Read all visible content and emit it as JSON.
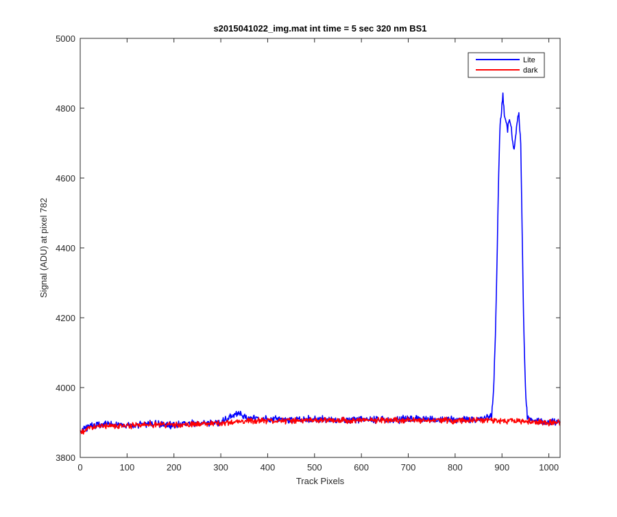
{
  "chart_data": {
    "type": "line",
    "title": "s2015041022_img.mat int time = 5 sec  320 nm BS1",
    "xlabel": "Track Pixels",
    "ylabel": "Signal (ADU) at pixel 782",
    "xlim": [
      0,
      1024
    ],
    "ylim": [
      3800,
      5000
    ],
    "xticks": [
      0,
      100,
      200,
      300,
      400,
      500,
      600,
      700,
      800,
      900,
      1000
    ],
    "yticks": [
      3800,
      4000,
      4200,
      4400,
      4600,
      4800,
      5000
    ],
    "grid": false,
    "legend_position": "top-right",
    "series": [
      {
        "name": "Lite",
        "color": "#0000ff",
        "x": [
          0,
          20,
          50,
          100,
          150,
          200,
          250,
          300,
          338,
          350,
          400,
          450,
          500,
          550,
          600,
          650,
          700,
          750,
          800,
          850,
          878,
          882,
          886,
          890,
          893,
          896,
          899,
          902,
          905,
          908,
          912,
          916,
          920,
          925,
          928,
          932,
          936,
          940,
          943,
          946,
          950,
          954,
          958,
          962,
          966,
          1000,
          1024
        ],
        "y": [
          3875,
          3890,
          3895,
          3890,
          3897,
          3893,
          3897,
          3900,
          3930,
          3915,
          3910,
          3907,
          3910,
          3905,
          3910,
          3907,
          3910,
          3910,
          3910,
          3908,
          3920,
          3990,
          4150,
          4400,
          4620,
          4760,
          4790,
          4840,
          4780,
          4760,
          4740,
          4770,
          4740,
          4680,
          4700,
          4760,
          4780,
          4700,
          4450,
          4200,
          4000,
          3920,
          3910,
          3905,
          3905,
          3900,
          3900
        ]
      },
      {
        "name": "dark",
        "color": "#ff0000",
        "x": [
          0,
          20,
          50,
          100,
          150,
          200,
          250,
          300,
          350,
          400,
          450,
          500,
          550,
          600,
          650,
          700,
          750,
          800,
          850,
          900,
          950,
          1000,
          1024
        ],
        "y": [
          3870,
          3885,
          3890,
          3890,
          3895,
          3893,
          3895,
          3898,
          3905,
          3905,
          3905,
          3908,
          3905,
          3907,
          3905,
          3907,
          3907,
          3905,
          3908,
          3905,
          3905,
          3900,
          3900
        ]
      }
    ]
  }
}
